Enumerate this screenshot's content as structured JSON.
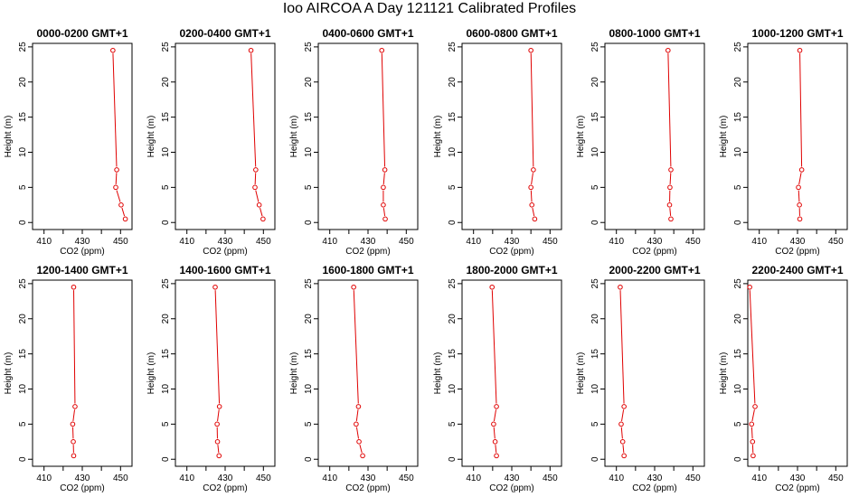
{
  "title": "Ioo AIRCOA A  Day 121121  Calibrated Profiles",
  "style": {
    "line_color": "#e00000",
    "point_color": "#e00000",
    "axis_color": "#000000"
  },
  "chart_data": [
    {
      "type": "line",
      "title": "0000-0200 GMT+1",
      "xlabel": "CO2 (ppm)",
      "ylabel": "Height (m)",
      "xlim": [
        404,
        456
      ],
      "ylim": [
        -1,
        25.5
      ],
      "xticks": [
        410,
        430,
        450
      ],
      "xticks_minor": [
        420,
        440
      ],
      "yticks": [
        0,
        5,
        10,
        15,
        20,
        25
      ],
      "series": [
        {
          "x": [
            452.5,
            450.3,
            447.5,
            448.0,
            446.0
          ],
          "y": [
            0.5,
            2.5,
            5,
            7.5,
            24.5
          ]
        }
      ]
    },
    {
      "type": "line",
      "title": "0200-0400 GMT+1",
      "xlabel": "CO2 (ppm)",
      "ylabel": "Height (m)",
      "xlim": [
        404,
        456
      ],
      "ylim": [
        -1,
        25.5
      ],
      "xticks": [
        410,
        430,
        450
      ],
      "xticks_minor": [
        420,
        440
      ],
      "yticks": [
        0,
        5,
        10,
        15,
        20,
        25
      ],
      "series": [
        {
          "x": [
            449.8,
            447.8,
            445.6,
            446.0,
            443.5
          ],
          "y": [
            0.5,
            2.5,
            5,
            7.5,
            24.5
          ]
        }
      ]
    },
    {
      "type": "line",
      "title": "0400-0600 GMT+1",
      "xlabel": "CO2 (ppm)",
      "ylabel": "Height (m)",
      "xlim": [
        404,
        456
      ],
      "ylim": [
        -1,
        25.5
      ],
      "xticks": [
        410,
        430,
        450
      ],
      "xticks_minor": [
        420,
        440
      ],
      "yticks": [
        0,
        5,
        10,
        15,
        20,
        25
      ],
      "series": [
        {
          "x": [
            439.0,
            438.0,
            438.0,
            438.8,
            437.2
          ],
          "y": [
            0.5,
            2.5,
            5,
            7.5,
            24.5
          ]
        }
      ]
    },
    {
      "type": "line",
      "title": "0600-0800 GMT+1",
      "xlabel": "CO2 (ppm)",
      "ylabel": "Height (m)",
      "xlim": [
        404,
        456
      ],
      "ylim": [
        -1,
        25.5
      ],
      "xticks": [
        410,
        430,
        450
      ],
      "xticks_minor": [
        420,
        440
      ],
      "yticks": [
        0,
        5,
        10,
        15,
        20,
        25
      ],
      "series": [
        {
          "x": [
            442.0,
            440.5,
            440.0,
            441.3,
            440.0
          ],
          "y": [
            0.5,
            2.5,
            5,
            7.5,
            24.5
          ]
        }
      ]
    },
    {
      "type": "line",
      "title": "0800-1000 GMT+1",
      "xlabel": "CO2 (ppm)",
      "ylabel": "Height (m)",
      "xlim": [
        404,
        456
      ],
      "ylim": [
        -1,
        25.5
      ],
      "xticks": [
        410,
        430,
        450
      ],
      "xticks_minor": [
        420,
        440
      ],
      "yticks": [
        0,
        5,
        10,
        15,
        20,
        25
      ],
      "series": [
        {
          "x": [
            438.5,
            437.8,
            438.0,
            438.5,
            437.0
          ],
          "y": [
            0.5,
            2.5,
            5,
            7.5,
            24.5
          ]
        }
      ]
    },
    {
      "type": "line",
      "title": "1000-1200 GMT+1",
      "xlabel": "CO2 (ppm)",
      "ylabel": "Height (m)",
      "xlim": [
        404,
        456
      ],
      "ylim": [
        -1,
        25.5
      ],
      "xticks": [
        410,
        430,
        450
      ],
      "xticks_minor": [
        420,
        440
      ],
      "yticks": [
        0,
        5,
        10,
        15,
        20,
        25
      ],
      "series": [
        {
          "x": [
            431.2,
            431.0,
            430.5,
            432.2,
            431.2
          ],
          "y": [
            0.5,
            2.5,
            5,
            7.5,
            24.5
          ]
        }
      ]
    },
    {
      "type": "line",
      "title": "1200-1400 GMT+1",
      "xlabel": "CO2 (ppm)",
      "ylabel": "Height (m)",
      "xlim": [
        404,
        456
      ],
      "ylim": [
        -1,
        25.5
      ],
      "xticks": [
        410,
        430,
        450
      ],
      "xticks_minor": [
        420,
        440
      ],
      "yticks": [
        0,
        5,
        10,
        15,
        20,
        25
      ],
      "series": [
        {
          "x": [
            425.5,
            425.3,
            425.0,
            426.2,
            425.5
          ],
          "y": [
            0.5,
            2.5,
            5,
            7.5,
            24.5
          ]
        }
      ]
    },
    {
      "type": "line",
      "title": "1400-1600 GMT+1",
      "xlabel": "CO2 (ppm)",
      "ylabel": "Height (m)",
      "xlim": [
        404,
        456
      ],
      "ylim": [
        -1,
        25.5
      ],
      "xticks": [
        410,
        430,
        450
      ],
      "xticks_minor": [
        420,
        440
      ],
      "yticks": [
        0,
        5,
        10,
        15,
        20,
        25
      ],
      "series": [
        {
          "x": [
            426.8,
            426.0,
            425.8,
            427.0,
            424.8
          ],
          "y": [
            0.5,
            2.5,
            5,
            7.5,
            24.5
          ]
        }
      ]
    },
    {
      "type": "line",
      "title": "1600-1800 GMT+1",
      "xlabel": "CO2 (ppm)",
      "ylabel": "Height (m)",
      "xlim": [
        404,
        456
      ],
      "ylim": [
        -1,
        25.5
      ],
      "xticks": [
        410,
        430,
        450
      ],
      "xticks_minor": [
        420,
        440
      ],
      "yticks": [
        0,
        5,
        10,
        15,
        20,
        25
      ],
      "series": [
        {
          "x": [
            427.2,
            425.3,
            423.8,
            425.0,
            422.5
          ],
          "y": [
            0.5,
            2.5,
            5,
            7.5,
            24.5
          ]
        }
      ]
    },
    {
      "type": "line",
      "title": "1800-2000 GMT+1",
      "xlabel": "CO2 (ppm)",
      "ylabel": "Height (m)",
      "xlim": [
        404,
        456
      ],
      "ylim": [
        -1,
        25.5
      ],
      "xticks": [
        410,
        430,
        450
      ],
      "xticks_minor": [
        420,
        440
      ],
      "yticks": [
        0,
        5,
        10,
        15,
        20,
        25
      ],
      "series": [
        {
          "x": [
            422.0,
            421.3,
            420.5,
            422.0,
            419.7
          ],
          "y": [
            0.5,
            2.5,
            5,
            7.5,
            24.5
          ]
        }
      ]
    },
    {
      "type": "line",
      "title": "2000-2200 GMT+1",
      "xlabel": "CO2 (ppm)",
      "ylabel": "Height (m)",
      "xlim": [
        404,
        456
      ],
      "ylim": [
        -1,
        25.5
      ],
      "xticks": [
        410,
        430,
        450
      ],
      "xticks_minor": [
        420,
        440
      ],
      "yticks": [
        0,
        5,
        10,
        15,
        20,
        25
      ],
      "series": [
        {
          "x": [
            414.0,
            413.3,
            412.5,
            414.0,
            412.0
          ],
          "y": [
            0.5,
            2.5,
            5,
            7.5,
            24.5
          ]
        }
      ]
    },
    {
      "type": "line",
      "title": "2200-2400 GMT+1",
      "xlabel": "CO2 (ppm)",
      "ylabel": "Height (m)",
      "xlim": [
        404,
        456
      ],
      "ylim": [
        -1,
        25.5
      ],
      "xticks": [
        410,
        430,
        450
      ],
      "xticks_minor": [
        420,
        440
      ],
      "yticks": [
        0,
        5,
        10,
        15,
        20,
        25
      ],
      "series": [
        {
          "x": [
            406.8,
            406.5,
            406.0,
            407.8,
            405.0
          ],
          "y": [
            0.5,
            2.5,
            5,
            7.5,
            24.5
          ]
        }
      ]
    }
  ]
}
